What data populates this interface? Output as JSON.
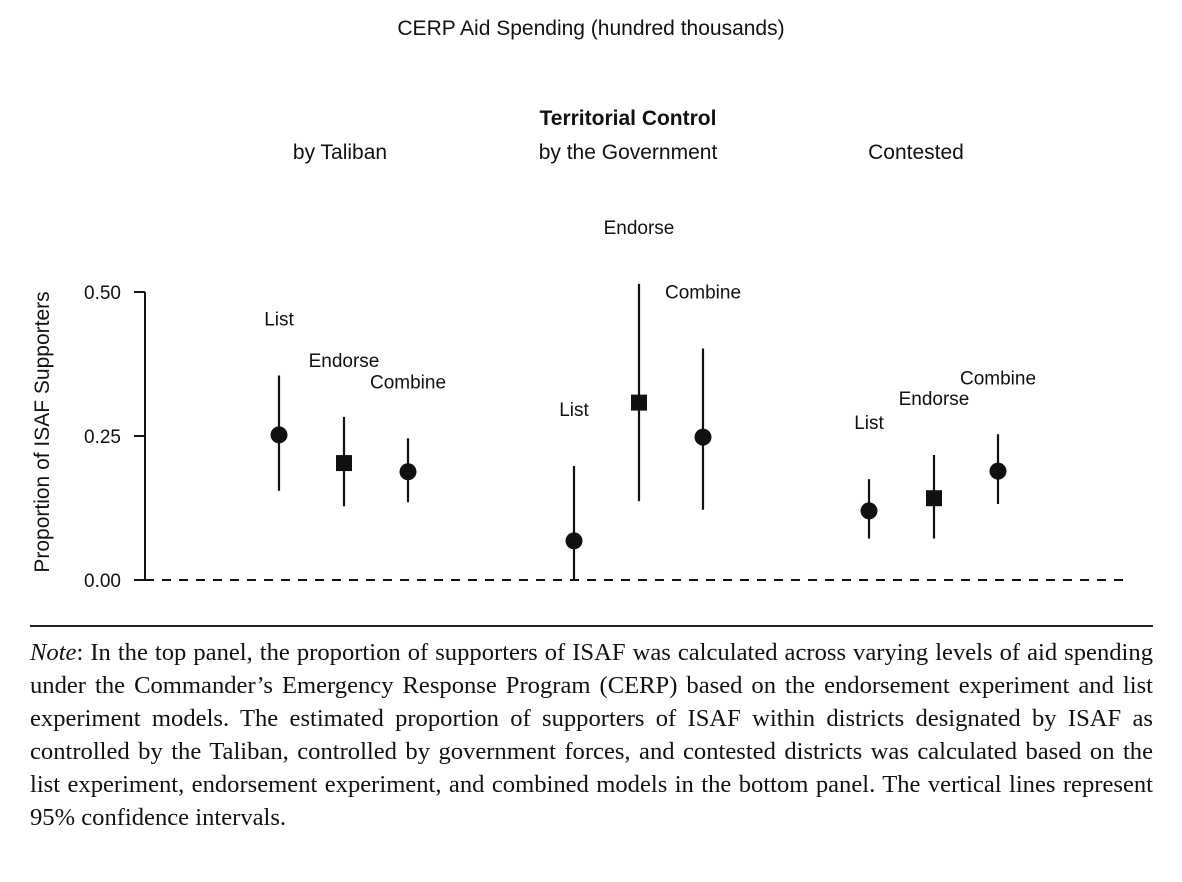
{
  "top_panel_title": "CERP Aid Spending (hundred thousands)",
  "note": {
    "label": "Note",
    "text": ": In the top panel, the proportion of supporters of ISAF was calculated across varying levels of aid spending under the Commander’s Emergency Response Program (CERP) based on the endorsement experiment and list experiment models. The estimated proportion of supporters of ISAF within districts designated by ISAF as controlled by the Taliban, controlled by government forces, and contested districts was calculated based on the list experiment, endorsement experiment, and combined models in the bottom panel. The vertical lines represent 95% confidence intervals."
  },
  "chart_data": {
    "type": "scatter",
    "title": "Territorial Control",
    "ylabel": "Proportion of ISAF Supporters",
    "ylim": [
      0,
      0.5
    ],
    "yticks": [
      "0.00",
      "0.25",
      "0.50"
    ],
    "reference_line": {
      "y": 0,
      "style": "dashed"
    },
    "groups": [
      {
        "name": "by Taliban",
        "points": [
          {
            "label": "List",
            "marker": "circle",
            "estimate": 0.252,
            "ci": [
              0.155,
              0.355
            ]
          },
          {
            "label": "Endorse",
            "marker": "square",
            "estimate": 0.203,
            "ci": [
              0.128,
              0.283
            ]
          },
          {
            "label": "Combine",
            "marker": "circle",
            "estimate": 0.188,
            "ci": [
              0.135,
              0.246
            ]
          }
        ]
      },
      {
        "name": "by the Government",
        "points": [
          {
            "label": "List",
            "marker": "circle",
            "estimate": 0.068,
            "ci": [
              0.0,
              0.198
            ]
          },
          {
            "label": "Endorse",
            "marker": "square",
            "estimate": 0.308,
            "ci": [
              0.137,
              0.514
            ]
          },
          {
            "label": "Combine",
            "marker": "circle",
            "estimate": 0.248,
            "ci": [
              0.122,
              0.402
            ]
          }
        ]
      },
      {
        "name": "Contested",
        "points": [
          {
            "label": "List",
            "marker": "circle",
            "estimate": 0.12,
            "ci": [
              0.072,
              0.175
            ]
          },
          {
            "label": "Endorse",
            "marker": "square",
            "estimate": 0.142,
            "ci": [
              0.072,
              0.217
            ]
          },
          {
            "label": "Combine",
            "marker": "circle",
            "estimate": 0.189,
            "ci": [
              0.132,
              0.253
            ]
          }
        ]
      }
    ]
  }
}
